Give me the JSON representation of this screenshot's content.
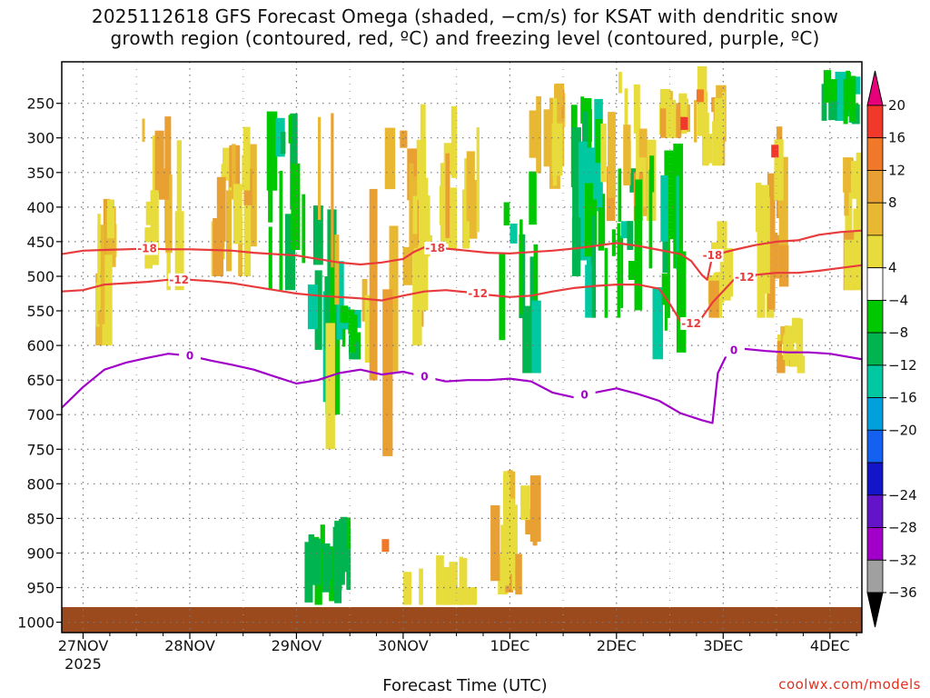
{
  "header": {
    "line1": "2025112618 GFS Forecast Omega (shaded, −cm/s) for KSAT with dendritic snow",
    "line2": "growth region (contoured, red, ºC) and freezing level (contoured, purple, ºC)"
  },
  "footer": {
    "xlabel": "Forecast Time (UTC)",
    "credit": "coolwx.com/models"
  },
  "chart_data": {
    "type": "heatmap",
    "title": "2025112618 GFS Forecast Omega (shaded, −cm/s) for KSAT with dendritic snow growth region (contoured, red, ºC) and freezing level (contoured, purple, ºC)",
    "xlabel": "Forecast Time (UTC)",
    "ylabel": "",
    "x_ticks": [
      "27NOV",
      "28NOV",
      "29NOV",
      "30NOV",
      "1DEC",
      "2DEC",
      "3DEC",
      "4DEC"
    ],
    "x_tick_sub": "2025",
    "x_range": [
      -0.2,
      7.3
    ],
    "y_ticks": [
      250,
      300,
      350,
      400,
      450,
      500,
      550,
      600,
      650,
      700,
      750,
      800,
      850,
      900,
      950,
      1000
    ],
    "y_range": [
      190,
      1015
    ],
    "colorbar": {
      "labels": [
        "20",
        "16",
        "12",
        "8",
        "4",
        "−4",
        "−8",
        "−12",
        "−16",
        "−20",
        "−24",
        "−28",
        "−32",
        "−36"
      ],
      "colors": [
        "#e6007a",
        "#f0392b",
        "#f07828",
        "#e8a032",
        "#e8b832",
        "#e8dc3c",
        "#ffffff",
        "#00c800",
        "#00b450",
        "#00c8a0",
        "#00a0dc",
        "#1460f0",
        "#1414c8",
        "#6414c8",
        "#a000c8",
        "#a0a0a0",
        "#000000"
      ]
    },
    "contours": [
      {
        "name": "dgz-top",
        "label": "-18",
        "color": "#e83c3c",
        "points": [
          [
            -0.2,
            468
          ],
          [
            0,
            463
          ],
          [
            0.2,
            462
          ],
          [
            0.4,
            461
          ],
          [
            0.6,
            460
          ],
          [
            0.8,
            461
          ],
          [
            1,
            461
          ],
          [
            1.2,
            462
          ],
          [
            1.4,
            463
          ],
          [
            1.6,
            466
          ],
          [
            1.8,
            468
          ],
          [
            2,
            470
          ],
          [
            2.2,
            475
          ],
          [
            2.4,
            480
          ],
          [
            2.6,
            483
          ],
          [
            2.8,
            480
          ],
          [
            3,
            475
          ],
          [
            3.1,
            465
          ],
          [
            3.2,
            458
          ],
          [
            3.4,
            460
          ],
          [
            3.6,
            463
          ],
          [
            3.8,
            466
          ],
          [
            4,
            467
          ],
          [
            4.2,
            465
          ],
          [
            4.4,
            463
          ],
          [
            4.6,
            460
          ],
          [
            4.8,
            456
          ],
          [
            5,
            452
          ],
          [
            5.2,
            456
          ],
          [
            5.4,
            462
          ],
          [
            5.6,
            468
          ],
          [
            5.7,
            478
          ],
          [
            5.8,
            498
          ],
          [
            5.85,
            505
          ],
          [
            5.9,
            470
          ],
          [
            6.1,
            462
          ],
          [
            6.3,
            455
          ],
          [
            6.5,
            450
          ],
          [
            6.7,
            448
          ],
          [
            6.9,
            440
          ],
          [
            7.1,
            436
          ],
          [
            7.3,
            434
          ]
        ],
        "label_at": [
          0.6,
          3.3,
          5.9
        ]
      },
      {
        "name": "dgz-bottom",
        "label": "-12",
        "color": "#e83c3c",
        "points": [
          [
            -0.2,
            522
          ],
          [
            0,
            520
          ],
          [
            0.2,
            512
          ],
          [
            0.4,
            510
          ],
          [
            0.6,
            508
          ],
          [
            0.8,
            505
          ],
          [
            1,
            505
          ],
          [
            1.2,
            507
          ],
          [
            1.4,
            510
          ],
          [
            1.6,
            515
          ],
          [
            1.8,
            520
          ],
          [
            2,
            525
          ],
          [
            2.2,
            528
          ],
          [
            2.4,
            530
          ],
          [
            2.6,
            532
          ],
          [
            2.8,
            535
          ],
          [
            3,
            528
          ],
          [
            3.2,
            522
          ],
          [
            3.4,
            520
          ],
          [
            3.6,
            523
          ],
          [
            3.8,
            527
          ],
          [
            4,
            530
          ],
          [
            4.2,
            528
          ],
          [
            4.4,
            522
          ],
          [
            4.6,
            517
          ],
          [
            4.8,
            514
          ],
          [
            5,
            512
          ],
          [
            5.2,
            512
          ],
          [
            5.4,
            518
          ],
          [
            5.5,
            540
          ],
          [
            5.6,
            565
          ],
          [
            5.75,
            570
          ],
          [
            5.8,
            560
          ],
          [
            5.9,
            538
          ],
          [
            6.1,
            505
          ],
          [
            6.3,
            498
          ],
          [
            6.5,
            495
          ],
          [
            6.7,
            495
          ],
          [
            6.9,
            492
          ],
          [
            7.1,
            488
          ],
          [
            7.3,
            484
          ]
        ],
        "label_at": [
          0.9,
          3.7,
          5.7,
          6.2
        ]
      },
      {
        "name": "freezing-level",
        "label": "0",
        "color": "#a000c8",
        "points": [
          [
            -0.2,
            690
          ],
          [
            0,
            660
          ],
          [
            0.2,
            635
          ],
          [
            0.4,
            625
          ],
          [
            0.6,
            618
          ],
          [
            0.8,
            612
          ],
          [
            1,
            615
          ],
          [
            1.2,
            622
          ],
          [
            1.4,
            628
          ],
          [
            1.6,
            635
          ],
          [
            1.8,
            645
          ],
          [
            2,
            655
          ],
          [
            2.2,
            650
          ],
          [
            2.4,
            640
          ],
          [
            2.6,
            635
          ],
          [
            2.8,
            642
          ],
          [
            3,
            638
          ],
          [
            3.2,
            645
          ],
          [
            3.4,
            652
          ],
          [
            3.6,
            650
          ],
          [
            3.8,
            650
          ],
          [
            4,
            648
          ],
          [
            4.2,
            652
          ],
          [
            4.4,
            668
          ],
          [
            4.6,
            675
          ],
          [
            4.8,
            668
          ],
          [
            5,
            662
          ],
          [
            5.2,
            670
          ],
          [
            5.4,
            680
          ],
          [
            5.6,
            698
          ],
          [
            5.8,
            708
          ],
          [
            5.9,
            712
          ],
          [
            5.95,
            640
          ],
          [
            6.05,
            608
          ],
          [
            6.2,
            605
          ],
          [
            6.4,
            608
          ],
          [
            6.6,
            610
          ],
          [
            6.8,
            610
          ],
          [
            7,
            612
          ],
          [
            7.3,
            620
          ]
        ],
        "label_at": [
          1,
          3.2,
          4.7,
          6.1
        ]
      }
    ]
  }
}
